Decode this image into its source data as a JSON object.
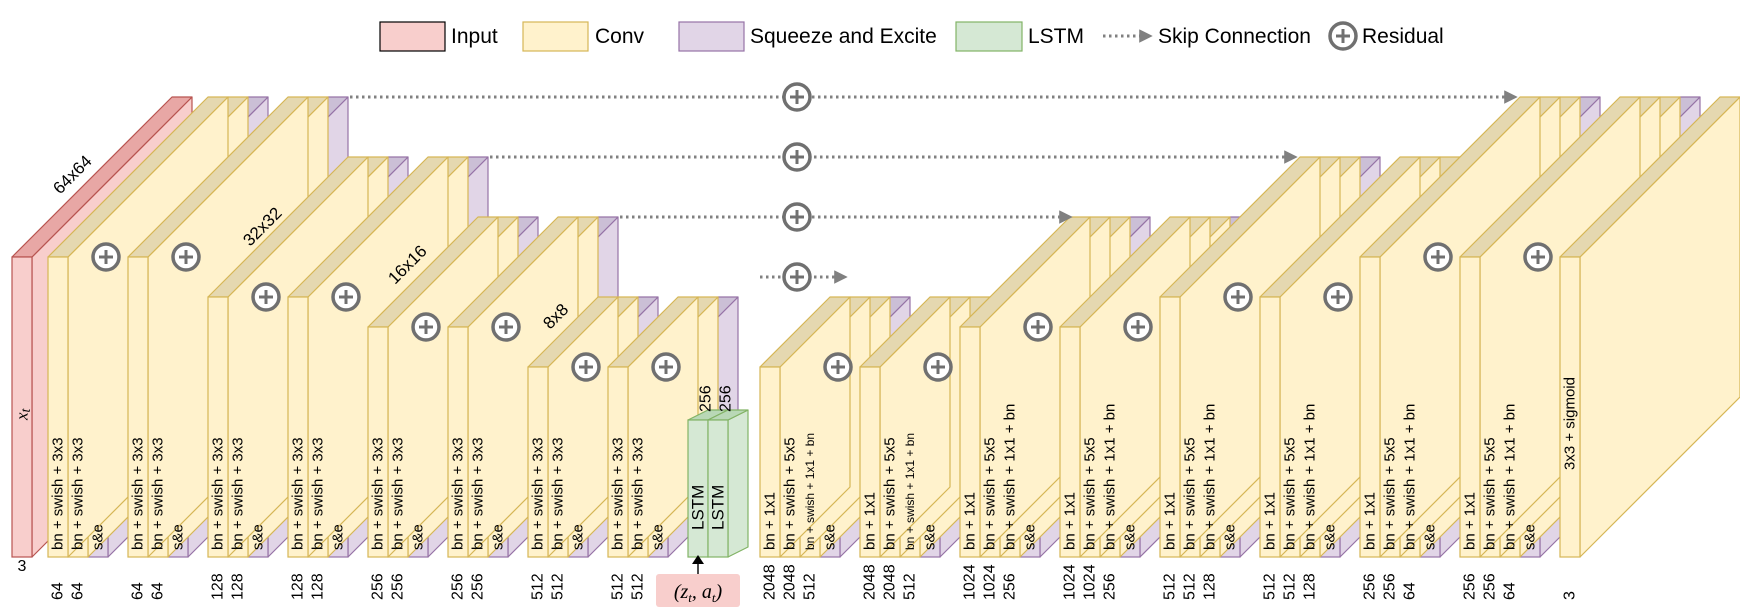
{
  "legend": {
    "input": "Input",
    "conv": "Conv",
    "se": "Squeeze and Excite",
    "lstm": "LSTM",
    "skip": "Skip Connection",
    "residual": "Residual"
  },
  "colors": {
    "input_front": "#f8cecc",
    "input_top": "#e8a7a5",
    "input_stroke": "#b85450",
    "conv_front": "#fff2cc",
    "conv_top": "#e5d8b0",
    "conv_stroke": "#d6b656",
    "se_front": "#e1d5e7",
    "se_top": "#cbbfd6",
    "se_stroke": "#9673a6",
    "lstm_front": "#d5e8d4",
    "lstm_top": "#b9d8b6",
    "lstm_stroke": "#82b366",
    "arrow": "#808080"
  },
  "input_label": "x",
  "input_label_sub": "t",
  "conditioning_label": "(z",
  "conditioning_label_sub": "t",
  "conditioning_label_sep": ", a",
  "conditioning_label_sub2": "t",
  "conditioning_label_end": ")",
  "resolutions": [
    "64x64",
    "32x32",
    "16x16",
    "8x8"
  ],
  "lstm": {
    "labels": [
      "LSTM",
      "LSTM"
    ],
    "channels": [
      "256",
      "256"
    ]
  },
  "blocks": [
    {
      "labels": [
        "bn + swish + 3x3",
        "bn + swish + 3x3",
        "s&e"
      ],
      "channels": [
        "64",
        "64"
      ]
    },
    {
      "labels": [
        "bn + swish + 3x3",
        "bn + swish + 3x3",
        "s&e"
      ],
      "channels": [
        "64",
        "64"
      ]
    },
    {
      "labels": [
        "bn + swish + 3x3",
        "bn + swish + 3x3",
        "s&e"
      ],
      "channels": [
        "128",
        "128"
      ]
    },
    {
      "labels": [
        "bn + swish + 3x3",
        "bn + swish + 3x3",
        "s&e"
      ],
      "channels": [
        "128",
        "128"
      ]
    },
    {
      "labels": [
        "bn + swish + 3x3",
        "bn + swish + 3x3",
        "s&e"
      ],
      "channels": [
        "256",
        "256"
      ]
    },
    {
      "labels": [
        "bn + swish + 3x3",
        "bn + swish + 3x3",
        "s&e"
      ],
      "channels": [
        "256",
        "256"
      ]
    },
    {
      "labels": [
        "bn + swish + 3x3",
        "bn + swish + 3x3",
        "s&e"
      ],
      "channels": [
        "512",
        "512"
      ]
    },
    {
      "labels": [
        "bn + swish + 3x3",
        "bn + swish + 3x3",
        "s&e"
      ],
      "channels": [
        "512",
        "512"
      ]
    },
    {
      "labels": [
        "bn + 1x1",
        "bn + swish + 5x5",
        "bn + swish + 1x1 + bn",
        "s&e"
      ],
      "channels": [
        "2048",
        "2048",
        "512"
      ]
    },
    {
      "labels": [
        "bn + 1x1",
        "bn + swish + 5x5",
        "bn + swish + 1x1 + bn",
        "s&e"
      ],
      "channels": [
        "2048",
        "2048",
        "512"
      ]
    },
    {
      "labels": [
        "bn + 1x1",
        "bn + swish + 5x5",
        "bn + swish + 1x1 + bn",
        "s&e"
      ],
      "channels": [
        "1024",
        "1024",
        "256"
      ]
    },
    {
      "labels": [
        "bn + 1x1",
        "bn + swish + 5x5",
        "bn + swish + 1x1 + bn",
        "s&e"
      ],
      "channels": [
        "1024",
        "1024",
        "256"
      ]
    },
    {
      "labels": [
        "bn + 1x1",
        "bn + swish + 5x5",
        "bn + swish + 1x1 + bn",
        "s&e"
      ],
      "channels": [
        "512",
        "512",
        "128"
      ]
    },
    {
      "labels": [
        "bn + 1x1",
        "bn + swish + 5x5",
        "bn + swish + 1x1 + bn",
        "s&e"
      ],
      "channels": [
        "512",
        "512",
        "128"
      ]
    },
    {
      "labels": [
        "bn + 1x1",
        "bn + swish + 5x5",
        "bn + swish + 1x1 + bn",
        "s&e"
      ],
      "channels": [
        "256",
        "256",
        "64"
      ]
    },
    {
      "labels": [
        "bn + 1x1",
        "bn + swish + 5x5",
        "bn + swish + 1x1 + bn",
        "s&e"
      ],
      "channels": [
        "256",
        "256",
        "64"
      ]
    }
  ],
  "input_channels": "3",
  "output": {
    "label": "3x3 + sigmoid",
    "channels": "3"
  }
}
